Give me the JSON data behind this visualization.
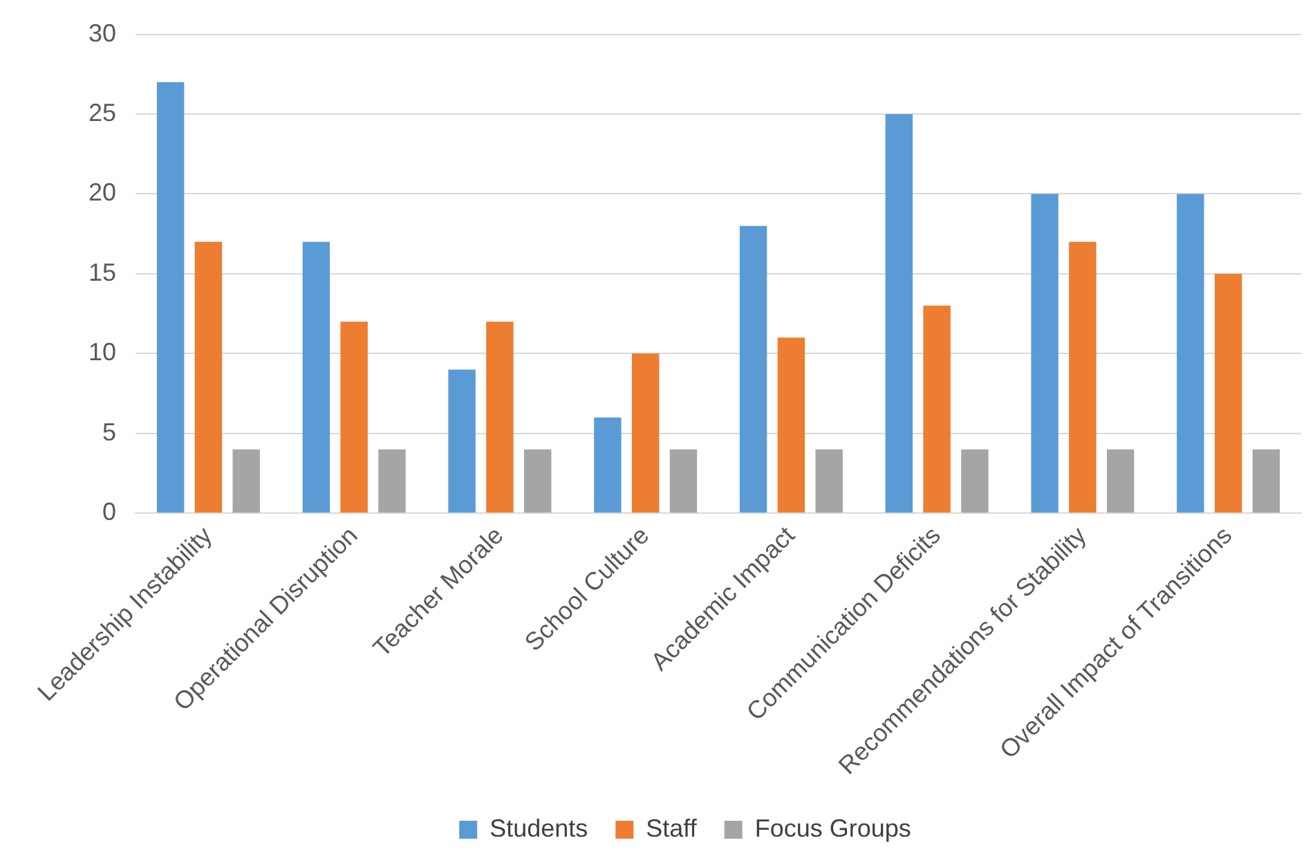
{
  "chart_data": {
    "type": "bar",
    "categories": [
      "Leadership Instability",
      "Operational Disruption",
      "Teacher Morale",
      "School Culture",
      "Academic Impact",
      "Communication Deficits",
      "Recommendations for Stability",
      "Overall Impact of Transitions"
    ],
    "series": [
      {
        "name": "Students",
        "color": "#5b9bd5",
        "values": [
          27,
          17,
          9,
          6,
          18,
          25,
          20,
          20
        ]
      },
      {
        "name": "Staff",
        "color": "#ed7d31",
        "values": [
          17,
          12,
          12,
          10,
          11,
          13,
          17,
          15
        ]
      },
      {
        "name": "Focus Groups",
        "color": "#a5a5a5",
        "values": [
          4,
          4,
          4,
          4,
          4,
          4,
          4,
          4
        ]
      }
    ],
    "ylim": [
      0,
      30
    ],
    "yticks": [
      0,
      5,
      10,
      15,
      20,
      25,
      30
    ],
    "grid": "y",
    "legend": "bottom"
  }
}
